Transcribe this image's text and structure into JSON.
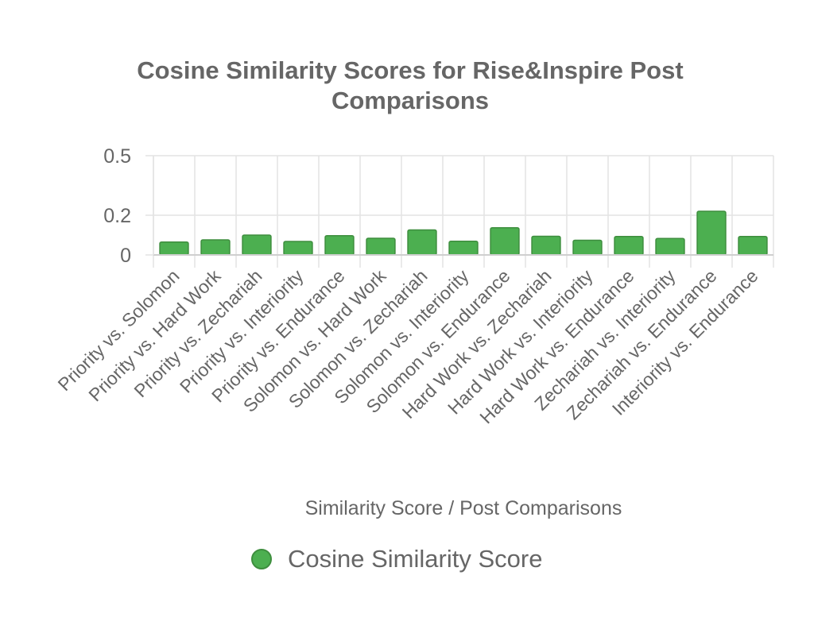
{
  "chart_data": {
    "type": "bar",
    "title_lines": [
      "Cosine Similarity Scores for Rise&Inspire Post",
      "Comparisons"
    ],
    "xlabel": "Similarity Score / Post Comparisons",
    "ylabel": "",
    "ylim": [
      0,
      0.5
    ],
    "yticks": [
      {
        "value": 0,
        "label": "0"
      },
      {
        "value": 0.2,
        "label": "0.2"
      },
      {
        "value": 0.5,
        "label": "0.5"
      }
    ],
    "grid": true,
    "legend_position": "bottom",
    "categories": [
      "Priority vs. Solomon",
      "Priority vs. Hard Work",
      "Priority vs. Zechariah",
      "Priority vs. Interiority",
      "Priority vs. Endurance",
      "Solomon vs. Hard Work",
      "Solomon vs. Zechariah",
      "Solomon vs. Interiority",
      "Solomon vs. Endurance",
      "Hard Work vs. Zechariah",
      "Hard Work vs. Interiority",
      "Hard Work vs. Endurance",
      "Zechariah vs. Interiority",
      "Zechariah vs. Endurance",
      "Interiority vs. Endurance"
    ],
    "series": [
      {
        "name": "Cosine Similarity Score",
        "color": "#4caf50",
        "border_color": "#3e8e3e",
        "values": [
          0.065,
          0.076,
          0.1,
          0.068,
          0.097,
          0.084,
          0.126,
          0.069,
          0.137,
          0.094,
          0.074,
          0.093,
          0.083,
          0.22,
          0.093
        ]
      }
    ]
  }
}
